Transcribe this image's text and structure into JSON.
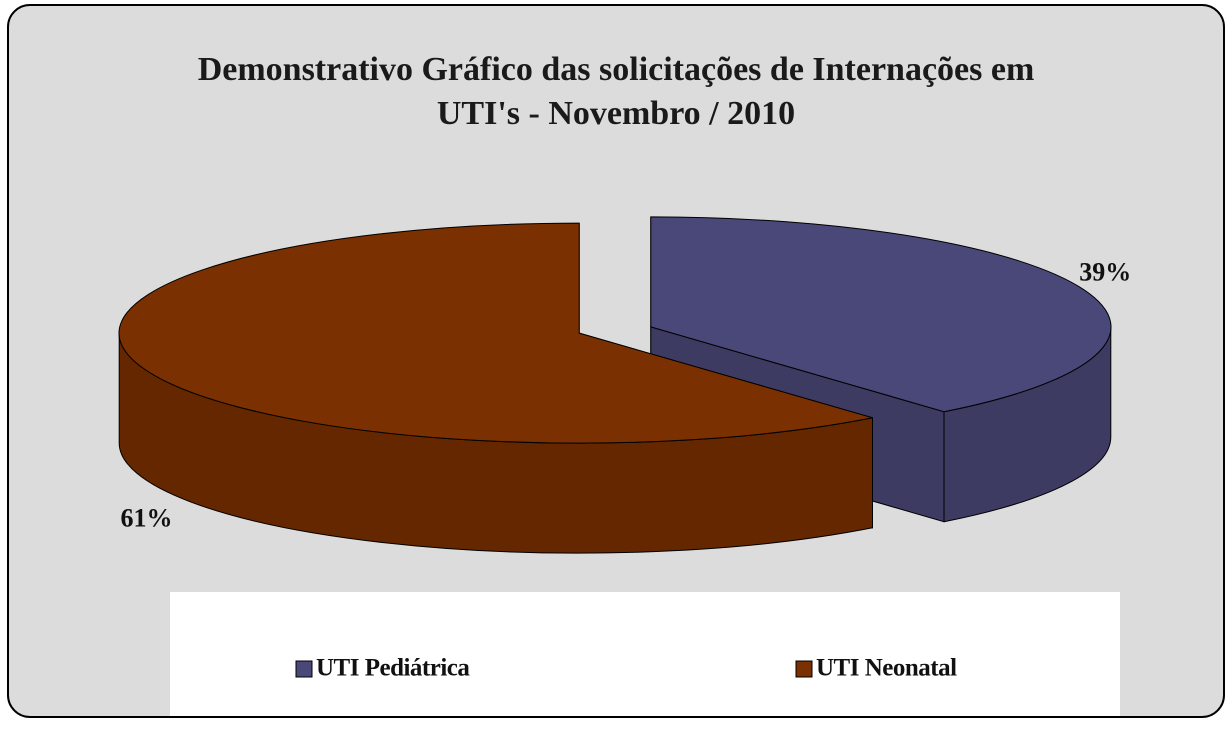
{
  "chart_data": {
    "type": "pie3d",
    "title": "Demonstrativo Gráfico das solicitações de Internações em UTI's - Novembro / 2010",
    "categories": [
      "UTI Pediátrica",
      "UTI Neonatal"
    ],
    "values": [
      39,
      61
    ],
    "value_labels": [
      "39%",
      "61%"
    ],
    "colors": [
      "#4a4878",
      "#7a3000"
    ],
    "legend": "bottom"
  }
}
